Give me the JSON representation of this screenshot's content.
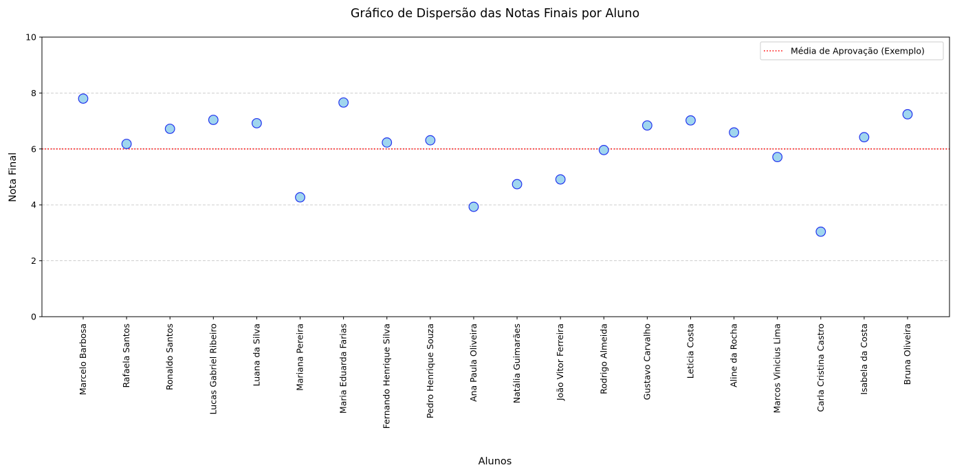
{
  "chart_data": {
    "type": "scatter",
    "title": "Gráfico de Dispersão das Notas Finais por Aluno",
    "xlabel": "Alunos",
    "ylabel": "Nota Final",
    "ylim": [
      0,
      10
    ],
    "yticks": [
      0,
      2,
      4,
      6,
      8,
      10
    ],
    "grid": {
      "axis": "y",
      "style": "dashed",
      "color": "#c8c8c8"
    },
    "categories": [
      "Marcelo Barbosa",
      "Rafaela Santos",
      "Ronaldo Santos",
      "Lucas Gabriel Ribeiro",
      "Luana da Silva",
      "Mariana Pereira",
      "Maria Eduarda Farias",
      "Fernando Henrique Silva",
      "Pedro Henrique Souza",
      "Ana Paula Oliveira",
      "Natália Guimarães",
      "João Vitor Ferreira",
      "Rodrigo Almeida",
      "Gustavo Carvalho",
      "Leticia Costa",
      "Aline da Rocha",
      "Marcos Vinicius Lima",
      "Carla Cristina Castro",
      "Isabela da Costa",
      "Bruna Oliveira"
    ],
    "series": [
      {
        "name": "Notas Finais",
        "values": [
          7.8,
          6.18,
          6.72,
          7.04,
          6.92,
          4.27,
          7.66,
          6.23,
          6.31,
          3.93,
          4.74,
          4.91,
          5.96,
          6.84,
          7.02,
          6.59,
          5.71,
          3.04,
          6.42,
          7.24
        ],
        "marker_fill": "#a0d6ee",
        "marker_edge": "#2233ee"
      }
    ],
    "reference_line": {
      "y": 6,
      "label": "Média de Aprovação (Exemplo)",
      "color": "#ff0000",
      "style": "dotted"
    },
    "legend": {
      "position": "upper right",
      "entries": [
        "Média de Aprovação (Exemplo)"
      ]
    }
  }
}
